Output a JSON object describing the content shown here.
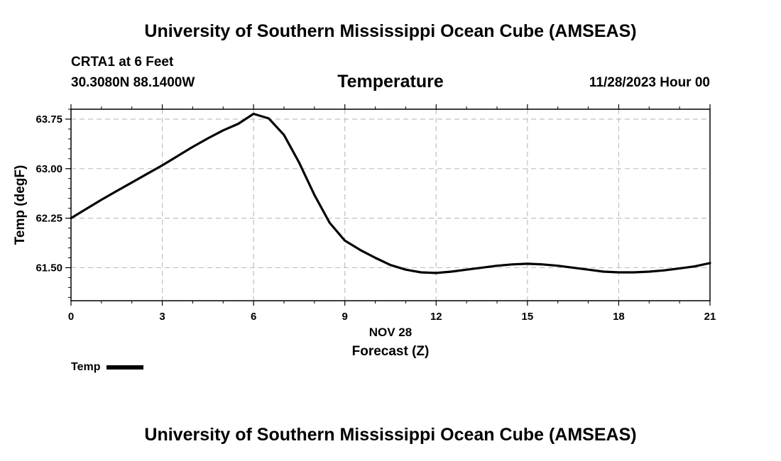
{
  "header": {
    "title": "University of Southern Mississippi Ocean Cube (AMSEAS)",
    "station": "CRTA1 at 6 Feet",
    "coordinates": "30.3080N  88.1400W",
    "variable_title": "Temperature",
    "run_time": "11/28/2023 Hour 00"
  },
  "footer": {
    "title": "University of Southern Mississippi Ocean Cube (AMSEAS)"
  },
  "legend": {
    "label": "Temp"
  },
  "colors": {
    "line": "#000000",
    "grid": "#c0c0c0",
    "frame": "#000000",
    "background": "#ffffff"
  },
  "chart_data": {
    "type": "line",
    "title": "Temperature",
    "xlabel": "Forecast (Z)",
    "xlabel_date": "NOV 28",
    "ylabel": "Temp (degF)",
    "xlim": [
      0,
      21
    ],
    "ylim": [
      61.0,
      63.9
    ],
    "x_ticks": [
      0,
      3,
      6,
      9,
      12,
      15,
      18,
      21
    ],
    "x_tick_labels": [
      "0",
      "3",
      "6",
      "9",
      "12",
      "15",
      "18",
      "21"
    ],
    "y_ticks": [
      61.5,
      62.25,
      63.0,
      63.75
    ],
    "y_tick_labels": [
      "61.50",
      "62.25",
      "63.00",
      "63.75"
    ],
    "grid": true,
    "series": [
      {
        "name": "Temp",
        "x": [
          0,
          0.5,
          1,
          1.5,
          2,
          2.5,
          3,
          3.5,
          4,
          4.5,
          5,
          5.5,
          6,
          6.5,
          7,
          7.5,
          8,
          8.5,
          9,
          9.5,
          10,
          10.5,
          11,
          11.5,
          12,
          12.5,
          13,
          13.5,
          14,
          14.5,
          15,
          15.5,
          16,
          16.5,
          17,
          17.5,
          18,
          18.5,
          19,
          19.5,
          20,
          20.5,
          21
        ],
        "values": [
          62.25,
          62.39,
          62.53,
          62.66,
          62.79,
          62.92,
          63.05,
          63.19,
          63.33,
          63.46,
          63.58,
          63.68,
          63.83,
          63.76,
          63.51,
          63.09,
          62.6,
          62.18,
          61.91,
          61.77,
          61.65,
          61.54,
          61.47,
          61.43,
          61.42,
          61.44,
          61.47,
          61.5,
          61.53,
          61.55,
          61.56,
          61.55,
          61.53,
          61.5,
          61.47,
          61.44,
          61.43,
          61.43,
          61.44,
          61.46,
          61.49,
          61.52,
          61.57
        ]
      }
    ]
  }
}
